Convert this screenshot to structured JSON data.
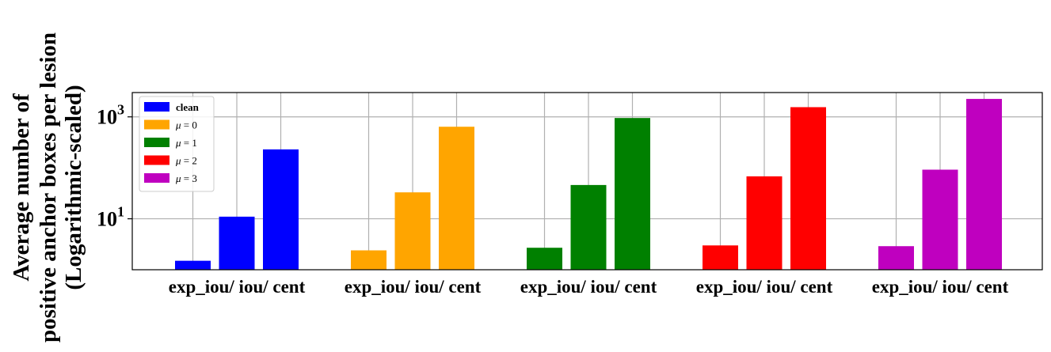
{
  "chart_data": {
    "type": "bar",
    "yscale": "log",
    "ylabel_lines": [
      "Average number of",
      "positive anchor boxes per lesion",
      "(Logarithmic-scaled)"
    ],
    "xlabel": "",
    "ylim": [
      1,
      3000
    ],
    "yticks": [
      {
        "value": 10,
        "base": "10",
        "exp": "1"
      },
      {
        "value": 1000,
        "base": "10",
        "exp": "3"
      }
    ],
    "grid": true,
    "legend_placement": "top-left",
    "groups": [
      {
        "label": "exp_iou/ iou/ cent",
        "series": "clean",
        "values": [
          1.5,
          11,
          230
        ]
      },
      {
        "label": "exp_iou/ iou/ cent",
        "series": "mu0",
        "values": [
          2.4,
          33,
          640
        ]
      },
      {
        "label": "exp_iou/ iou/ cent",
        "series": "mu1",
        "values": [
          2.7,
          46,
          950
        ]
      },
      {
        "label": "exp_iou/ iou/ cent",
        "series": "mu2",
        "values": [
          3.0,
          68,
          1550
        ]
      },
      {
        "label": "exp_iou/ iou/ cent",
        "series": "mu3",
        "values": [
          2.9,
          92,
          2250
        ]
      }
    ],
    "series": [
      {
        "key": "clean",
        "name": "clean",
        "math": false,
        "color": "#0000ff"
      },
      {
        "key": "mu0",
        "name_sym": "μ",
        "name_rest": " = 0",
        "math": true,
        "color": "#ffa500"
      },
      {
        "key": "mu1",
        "name_sym": "μ",
        "name_rest": " = 1",
        "math": true,
        "color": "#008000"
      },
      {
        "key": "mu2",
        "name_sym": "μ",
        "name_rest": " = 2",
        "math": true,
        "color": "#ff0000"
      },
      {
        "key": "mu3",
        "name_sym": "μ",
        "name_rest": " = 3",
        "math": true,
        "color": "#bf00bf"
      }
    ]
  }
}
